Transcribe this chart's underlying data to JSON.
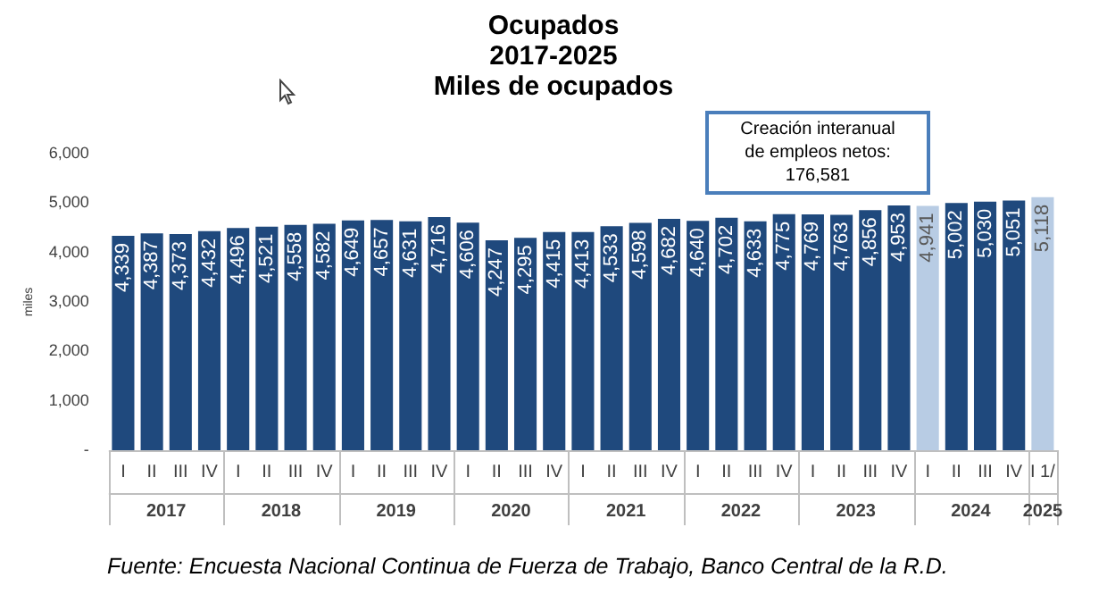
{
  "chart_data": {
    "type": "bar",
    "title": "Ocupados",
    "subtitle": "2017-2025\nMiles de ocupados",
    "ylabel": "miles",
    "categories": [
      "I",
      "II",
      "III",
      "IV",
      "I",
      "II",
      "III",
      "IV",
      "I",
      "II",
      "III",
      "IV",
      "I",
      "II",
      "III",
      "IV",
      "I",
      "II",
      "III",
      "IV",
      "I",
      "II",
      "III",
      "IV",
      "I",
      "II",
      "III",
      "IV",
      "I",
      "II",
      "III",
      "IV",
      "I 1/"
    ],
    "values": [
      4339,
      4387,
      4373,
      4432,
      4496,
      4521,
      4558,
      4582,
      4649,
      4657,
      4631,
      4716,
      4606,
      4247,
      4295,
      4415,
      4413,
      4533,
      4598,
      4682,
      4640,
      4702,
      4633,
      4775,
      4769,
      4763,
      4856,
      4953,
      4941,
      5002,
      5030,
      5051,
      5118
    ],
    "colors": [
      "#1f497d",
      "#1f497d",
      "#1f497d",
      "#1f497d",
      "#1f497d",
      "#1f497d",
      "#1f497d",
      "#1f497d",
      "#1f497d",
      "#1f497d",
      "#1f497d",
      "#1f497d",
      "#1f497d",
      "#1f497d",
      "#1f497d",
      "#1f497d",
      "#1f497d",
      "#1f497d",
      "#1f497d",
      "#1f497d",
      "#1f497d",
      "#1f497d",
      "#1f497d",
      "#1f497d",
      "#1f497d",
      "#1f497d",
      "#1f497d",
      "#1f497d",
      "#b8cce4",
      "#1f497d",
      "#1f497d",
      "#1f497d",
      "#b8cce4"
    ],
    "ylim": [
      0,
      6000
    ],
    "yticks": [
      {
        "value": 0,
        "label": "-"
      },
      {
        "value": 1000,
        "label": "1,000"
      },
      {
        "value": 2000,
        "label": "2,000"
      },
      {
        "value": 3000,
        "label": "3,000"
      },
      {
        "value": 4000,
        "label": "4,000"
      },
      {
        "value": 5000,
        "label": "5,000"
      },
      {
        "value": 6000,
        "label": "6,000"
      }
    ],
    "value_labels": [
      "4,339",
      "4,387",
      "4,373",
      "4,432",
      "4,496",
      "4,521",
      "4,558",
      "4,582",
      "4,649",
      "4,657",
      "4,631",
      "4,716",
      "4,606",
      "4,247",
      "4,295",
      "4,415",
      "4,413",
      "4,533",
      "4,598",
      "4,682",
      "4,640",
      "4,702",
      "4,633",
      "4,775",
      "4,769",
      "4,763",
      "4,856",
      "4,953",
      "4,941",
      "5,002",
      "5,030",
      "5,051",
      "5,118"
    ],
    "grid": false,
    "legend": false,
    "annotations": [
      "Creación interanual de empleos netos: 176,581",
      "2017",
      "2018",
      "2019",
      "2020",
      "2021",
      "2022",
      "2023",
      "2024",
      "2025",
      "Fuente: Encuesta Nacional Continua de Fuerza de Trabajo, Banco Central de la R.D."
    ]
  }
}
